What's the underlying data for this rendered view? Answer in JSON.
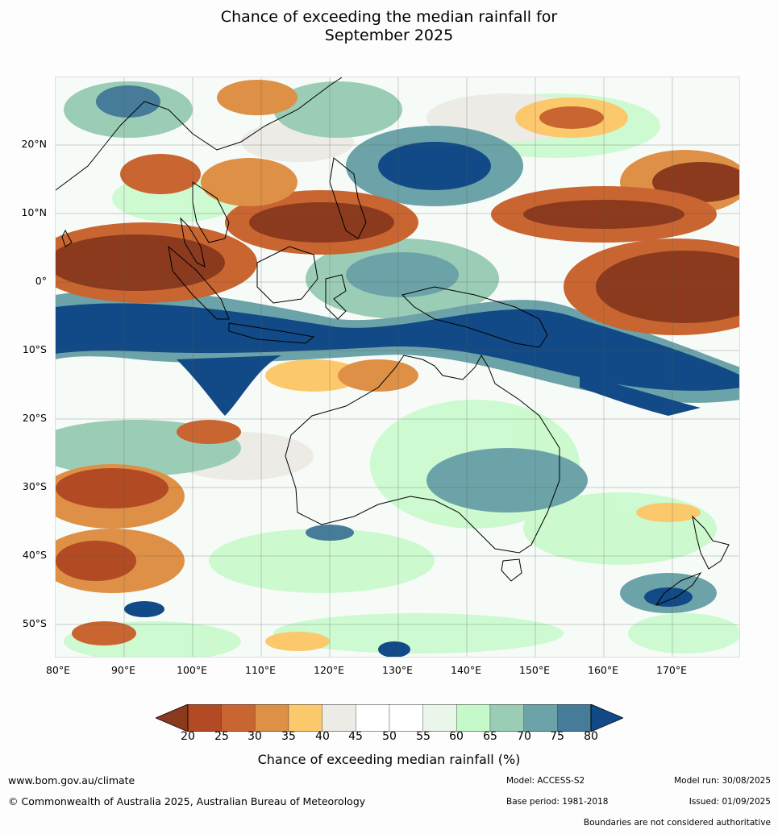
{
  "title": {
    "line1": "Chance of exceeding the median rainfall for",
    "line2": "September 2025"
  },
  "map": {
    "lat_labels": [
      "20°N",
      "10°N",
      "0°",
      "10°S",
      "20°S",
      "30°S",
      "40°S",
      "50°S"
    ],
    "lon_labels": [
      "80°E",
      "90°E",
      "100°E",
      "110°E",
      "120°E",
      "130°E",
      "140°E",
      "150°E",
      "160°E",
      "170°E"
    ],
    "extent": {
      "lon_min": 80,
      "lon_max": 180,
      "lat_min": -55,
      "lat_max": 30
    },
    "regions": [
      "Australia",
      "Tasmania",
      "New Zealand",
      "New Guinea",
      "Indonesia",
      "Philippines",
      "Southeast Asia"
    ]
  },
  "colorbar": {
    "ticks": [
      "20",
      "25",
      "30",
      "35",
      "40",
      "45",
      "50",
      "55",
      "60",
      "65",
      "70",
      "75",
      "80"
    ],
    "colors": [
      "#8b3a1e",
      "#b24a24",
      "#c96530",
      "#dd9046",
      "#fcc86c",
      "#ecebe6",
      "#ffffff",
      "#ffffff",
      "#e9f6e9",
      "#c6f9c9",
      "#9bcdb6",
      "#6ca3a8",
      "#467b9a",
      "#114a86"
    ],
    "title": "Chance of exceeding median rainfall (%)"
  },
  "footer": {
    "url": "www.bom.gov.au/climate",
    "copyright": "© Commonwealth of Australia 2025, Australian Bureau of Meteorology",
    "model": "Model: ACCESS-S2",
    "base_period": "Base period: 1981-2018",
    "model_run": "Model run: 30/08/2025",
    "issued": "Issued: 01/09/2025",
    "disclaimer": "Boundaries are not considered authoritative"
  }
}
